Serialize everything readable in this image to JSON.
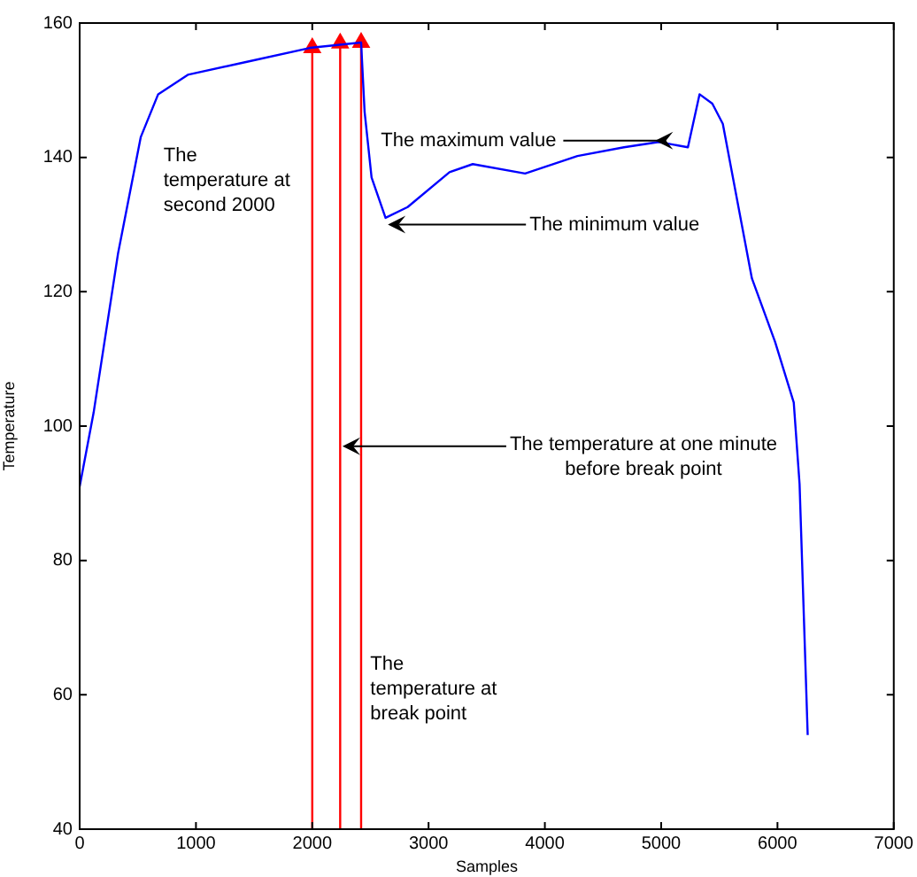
{
  "chart_data": {
    "type": "line",
    "xlabel": "Samples",
    "ylabel": "Temperature",
    "xlim": [
      0,
      7000
    ],
    "xticks": [
      0,
      1000,
      2000,
      3000,
      4000,
      5000,
      6000,
      7000
    ],
    "ylim": [
      40,
      160
    ],
    "yticks": [
      40,
      60,
      80,
      100,
      120,
      140,
      160
    ],
    "grid": false,
    "legend": false,
    "marker": "none",
    "line_style": "solid",
    "series": [
      {
        "color": "#0000ff",
        "x": [
          0,
          120,
          330,
          525,
          675,
          930,
          1430,
          1980,
          2420,
          2450,
          2510,
          2630,
          2820,
          3180,
          3380,
          3830,
          4280,
          4680,
          4980,
          5230,
          5330,
          5440,
          5530,
          5780,
          5980,
          6140,
          6190,
          6260
        ],
        "values": [
          91,
          102,
          125.7,
          143,
          149.4,
          152.3,
          154.2,
          156.3,
          157.1,
          146.8,
          137,
          131,
          132.6,
          137.8,
          139,
          137.6,
          140.2,
          141.5,
          142.3,
          141.5,
          149.4,
          148,
          145,
          122,
          112.5,
          103.5,
          91.4,
          54
        ]
      },
      {
        "color": "#ff0000",
        "marker": "triangle",
        "x": [
          2000,
          2000
        ],
        "values": [
          40,
          156.3
        ]
      },
      {
        "color": "#ff0000",
        "marker": "triangle",
        "x": [
          2240,
          2240
        ],
        "values": [
          40,
          157
        ]
      },
      {
        "color": "#ff0000",
        "marker": "triangle",
        "x": [
          2420,
          2420
        ],
        "values": [
          40,
          157.1
        ]
      }
    ],
    "annotations": [
      "The\ntemperature at\nsecond 2000",
      {
        "text": "The maximum value",
        "x": 4950,
        "y": 142.5
      },
      {
        "text": "The minimum value",
        "x": 2650,
        "y": 130
      },
      {
        "text": "The temperature at one minute\nbefore break point",
        "x": 2260,
        "y": 97
      },
      "The\ntemperature at\nbreak point"
    ]
  }
}
